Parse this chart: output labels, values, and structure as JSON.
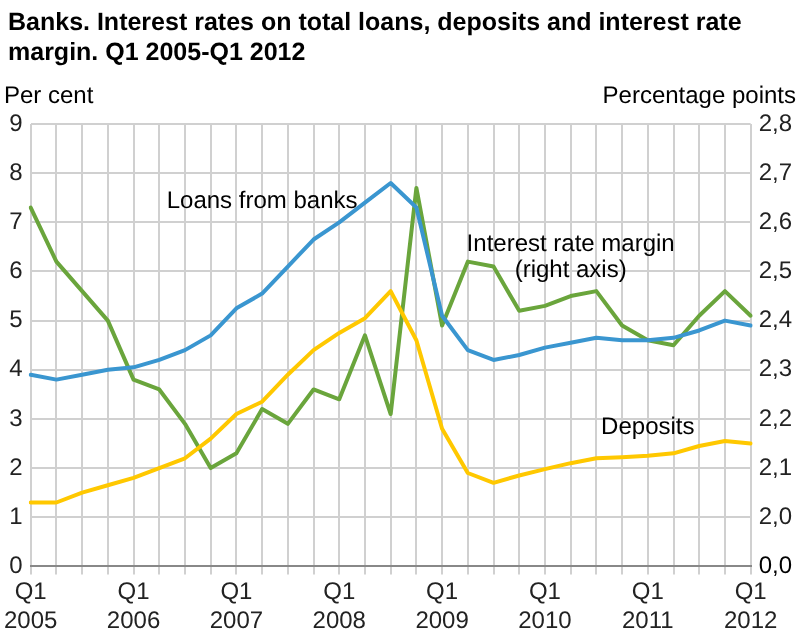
{
  "chart_data": {
    "type": "line",
    "title": "Banks. Interest rates on total loans, deposits and interest rate margin. Q1 2005-Q1 2012",
    "ylabel": "Per cent",
    "y2label": "Percentage points",
    "categories": [
      "Q1 2005",
      null,
      null,
      null,
      "Q1 2006",
      null,
      null,
      null,
      "Q1 2007",
      null,
      null,
      null,
      "Q1 2008",
      null,
      null,
      null,
      "Q1 2009",
      null,
      null,
      null,
      "Q1 2010",
      null,
      null,
      null,
      "Q1 2011",
      null,
      null,
      null,
      "Q1 2012"
    ],
    "series": [
      {
        "name": "Loans from banks",
        "color": "#3a96d0",
        "values": [
          3.9,
          3.8,
          3.9,
          4.0,
          4.05,
          4.2,
          4.4,
          4.7,
          5.25,
          5.55,
          6.1,
          6.65,
          7.0,
          7.4,
          7.8,
          7.3,
          5.1,
          4.4,
          4.2,
          4.3,
          4.45,
          4.55,
          4.65,
          4.6,
          4.6,
          4.65,
          4.8,
          5.0,
          4.9
        ]
      },
      {
        "name": "Deposits",
        "color": "#ffc800",
        "values": [
          1.3,
          1.3,
          1.5,
          1.65,
          1.8,
          2.0,
          2.2,
          2.6,
          3.1,
          3.35,
          3.9,
          4.4,
          4.75,
          5.05,
          5.6,
          4.6,
          2.8,
          1.9,
          1.7,
          1.85,
          1.98,
          2.1,
          2.2,
          2.22,
          2.25,
          2.3,
          2.45,
          2.55,
          2.5
        ]
      },
      {
        "name": "Interest rate margin (right axis)",
        "color": "#6aa53c",
        "axis": "y2",
        "values": [
          2.63,
          2.52,
          2.46,
          2.4,
          2.28,
          2.26,
          2.19,
          2.1,
          2.13,
          2.22,
          2.19,
          2.26,
          2.24,
          2.37,
          2.21,
          2.67,
          2.39,
          2.52,
          2.51,
          2.42,
          2.43,
          2.45,
          2.46,
          2.39,
          2.36,
          2.35,
          2.41,
          2.46,
          2.41
        ]
      }
    ],
    "ylim": [
      0,
      9
    ],
    "yticks": [
      0,
      1,
      2,
      3,
      4,
      5,
      6,
      7,
      8,
      9
    ],
    "y2lim": [
      1.9,
      2.8
    ],
    "y2ticks": [
      {
        "value": 1.9,
        "label": null
      },
      {
        "value": 2.0,
        "label": "2,0"
      },
      {
        "value": 2.1,
        "label": "2,1"
      },
      {
        "value": 2.2,
        "label": "2,2"
      },
      {
        "value": 2.3,
        "label": "2,3"
      },
      {
        "value": 2.4,
        "label": "2,4"
      },
      {
        "value": 2.5,
        "label": "2,5"
      },
      {
        "value": 2.6,
        "label": "2,6"
      },
      {
        "value": 2.7,
        "label": "2,7"
      },
      {
        "value": 2.8,
        "label": "2,8"
      }
    ],
    "annotations": [
      "0,0"
    ],
    "grid": true,
    "legend": false,
    "marker": "none",
    "line_style": "solid"
  }
}
